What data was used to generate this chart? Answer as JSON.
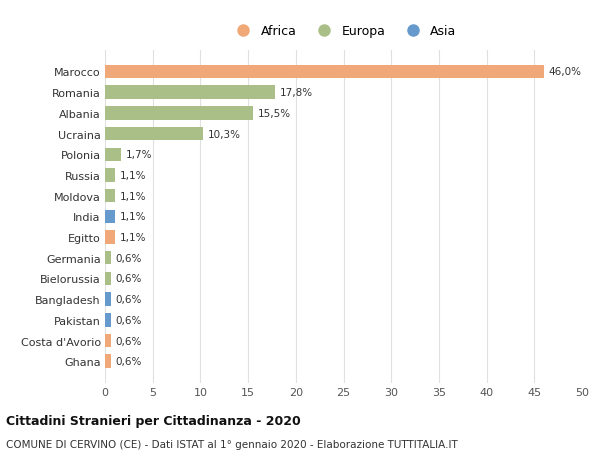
{
  "countries": [
    "Marocco",
    "Romania",
    "Albania",
    "Ucraina",
    "Polonia",
    "Russia",
    "Moldova",
    "India",
    "Egitto",
    "Germania",
    "Bielorussia",
    "Bangladesh",
    "Pakistan",
    "Costa d'Avorio",
    "Ghana"
  ],
  "values": [
    46.0,
    17.8,
    15.5,
    10.3,
    1.7,
    1.1,
    1.1,
    1.1,
    1.1,
    0.6,
    0.6,
    0.6,
    0.6,
    0.6,
    0.6
  ],
  "labels": [
    "46,0%",
    "17,8%",
    "15,5%",
    "10,3%",
    "1,7%",
    "1,1%",
    "1,1%",
    "1,1%",
    "1,1%",
    "0,6%",
    "0,6%",
    "0,6%",
    "0,6%",
    "0,6%",
    "0,6%"
  ],
  "continents": [
    "Africa",
    "Europa",
    "Europa",
    "Europa",
    "Europa",
    "Europa",
    "Europa",
    "Asia",
    "Africa",
    "Europa",
    "Europa",
    "Asia",
    "Asia",
    "Africa",
    "Africa"
  ],
  "colors": {
    "Africa": "#F0A878",
    "Europa": "#AABF88",
    "Asia": "#6699CC"
  },
  "title": "Cittadini Stranieri per Cittadinanza - 2020",
  "subtitle": "COMUNE DI CERVINO (CE) - Dati ISTAT al 1° gennaio 2020 - Elaborazione TUTTITALIA.IT",
  "xlim": [
    0,
    50
  ],
  "xticks": [
    0,
    5,
    10,
    15,
    20,
    25,
    30,
    35,
    40,
    45,
    50
  ],
  "bg_color": "#ffffff",
  "grid_color": "#e0e0e0"
}
